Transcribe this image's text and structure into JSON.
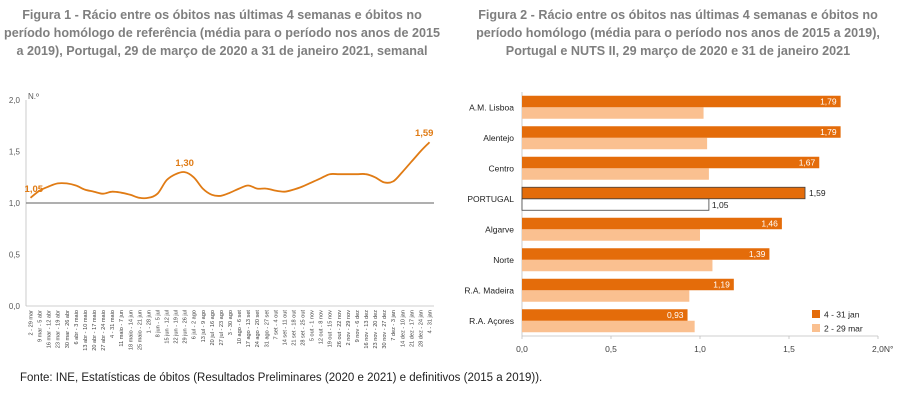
{
  "page": {
    "source": "Fonte: INE, Estatísticas de óbitos (Resultados Preliminares (2020 e 2021) e definitivos (2015 a 2019))."
  },
  "colors": {
    "line": "#e07b14",
    "reference": "#7f7f7f",
    "bar_dark": "#e46c0a",
    "bar_light": "#fac090",
    "title": "#7f7f7f"
  },
  "chart_data": [
    {
      "type": "line",
      "title": "Figura 1 - Rácio entre os óbitos nas últimas 4 semanas e óbitos no período homólogo de referência (média para o período nos anos de 2015 a 2019), Portugal, 29 de março de 2020 a 31 de janeiro 2021, semanal",
      "ylabel": "N.º",
      "ylim": [
        0,
        2
      ],
      "yticks": [
        "0,0",
        "0,5",
        "1,0",
        "1,5",
        "2,0"
      ],
      "reference_line": 1.0,
      "categories": [
        "2 - 29 mar",
        "9 mar - 5 abr",
        "16 mar - 12 abr",
        "23 mar - 19 abr",
        "30 mar - 26 abr",
        "6 abr - 3 maio",
        "13 abr - 10 maio",
        "20 abr - 17 maio",
        "27 abr - 24 maio",
        "4 - 31 maio",
        "11 maio - 7 jun",
        "18 maio - 14 jun",
        "25 maio - 21 jun",
        "1 - 28 jun",
        "8 jun - 5 jul",
        "15 jun - 12 jul",
        "22 jun - 19 jul",
        "29 jun - 26 jul",
        "6 jul - 2 ago",
        "13 jul - 9 ago",
        "20 jul - 16 ago",
        "27 jul - 23 ago",
        "3 - 30 ago",
        "10 ago - 6 set",
        "17 ago - 13 set",
        "24 ago - 20 set",
        "31 ago - 27 set",
        "7 set - 4 out",
        "14 set - 11 out",
        "21 set - 18 out",
        "28 set - 25 out",
        "5 out - 1 nov",
        "12 out - 8 nov",
        "19 out - 15 nov",
        "26 out - 22 nov",
        "2 nov - 29 nov",
        "9 nov - 6 dez",
        "16 nov - 13 dez",
        "23 nov - 20 dez",
        "30 nov - 27 dez",
        "7 dez - 3 jan",
        "14 dez - 10 jan",
        "21 dez - 17 jan",
        "28 dez - 24 jan",
        "4 - 31 jan"
      ],
      "values": [
        1.05,
        1.12,
        1.16,
        1.19,
        1.19,
        1.17,
        1.13,
        1.11,
        1.09,
        1.11,
        1.1,
        1.08,
        1.05,
        1.05,
        1.09,
        1.22,
        1.28,
        1.3,
        1.25,
        1.14,
        1.08,
        1.07,
        1.1,
        1.14,
        1.17,
        1.14,
        1.14,
        1.12,
        1.11,
        1.13,
        1.16,
        1.2,
        1.24,
        1.28,
        1.28,
        1.28,
        1.28,
        1.28,
        1.25,
        1.2,
        1.21,
        1.3,
        1.4,
        1.5,
        1.59
      ],
      "data_labels": [
        {
          "index": 0,
          "text": "1,05"
        },
        {
          "index": 17,
          "text": "1,30"
        },
        {
          "index": 44,
          "text": "1,59"
        }
      ]
    },
    {
      "type": "bar",
      "orientation": "horizontal",
      "title": "Figura 2 - Rácio entre os óbitos nas últimas 4 semanas e óbitos no período homólogo (média para o período nos anos de 2015 a 2019), Portugal e NUTS II, 29 março de 2020 e 31 de janeiro 2021",
      "categories": [
        "A.M. Lisboa",
        "Alentejo",
        "Centro",
        "PORTUGAL",
        "Algarve",
        "Norte",
        "R.A. Madeira",
        "R.A. Açores"
      ],
      "series": [
        {
          "name": "4 - 31 jan",
          "values": [
            1.79,
            1.79,
            1.67,
            1.59,
            1.46,
            1.39,
            1.19,
            0.93
          ],
          "labels": [
            "1,79",
            "1,79",
            "1,67",
            "1,59",
            "1,46",
            "1,39",
            "1,19",
            "0,93"
          ]
        },
        {
          "name": "2 - 29 mar",
          "values": [
            1.02,
            1.04,
            1.05,
            1.05,
            1.0,
            1.07,
            0.94,
            0.97
          ],
          "labels": [
            "",
            "",
            "",
            "1,05",
            "",
            "",
            "",
            ""
          ]
        }
      ],
      "highlight_category": "PORTUGAL",
      "xlim": [
        0,
        2
      ],
      "xticks": [
        "0,0",
        "0,5",
        "1,0",
        "1,5",
        "2,0N°"
      ]
    }
  ]
}
